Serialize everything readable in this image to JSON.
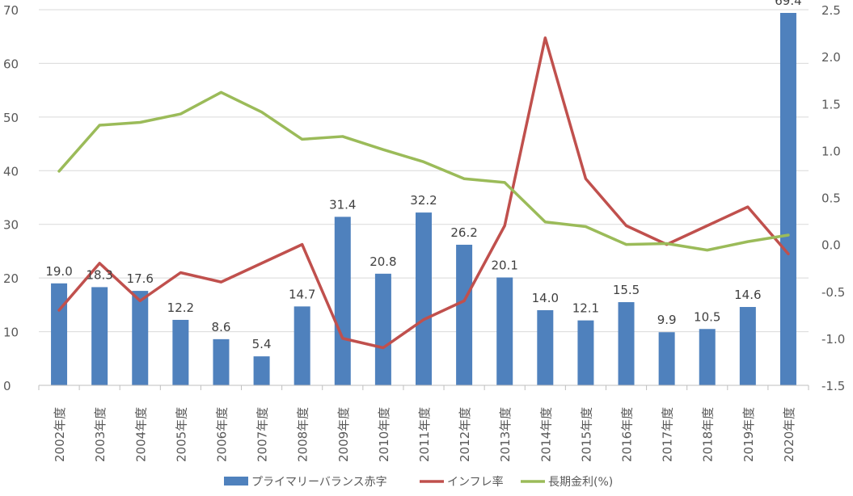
{
  "chart_data": {
    "type": "bar",
    "categories": [
      "2002年度",
      "2003年度",
      "2004年度",
      "2005年度",
      "2006年度",
      "2007年度",
      "2008年度",
      "2009年度",
      "2010年度",
      "2011年度",
      "2012年度",
      "2013年度",
      "2014年度",
      "2015年度",
      "2016年度",
      "2017年度",
      "2018年度",
      "2019年度",
      "2020年度"
    ],
    "series": [
      {
        "name": "プライマリーバランス赤字",
        "type": "bar",
        "axis": "left",
        "color": "#4F81BD",
        "values": [
          19.0,
          18.3,
          17.6,
          12.2,
          8.6,
          5.4,
          14.7,
          31.4,
          20.8,
          32.2,
          26.2,
          20.1,
          14.0,
          12.1,
          15.5,
          9.9,
          10.5,
          14.6,
          69.4
        ],
        "labels": [
          "19.0",
          "18.3",
          "17.6",
          "12.2",
          "8.6",
          "5.4",
          "14.7",
          "31.4",
          "20.8",
          "32.2",
          "26.2",
          "20.1",
          "14.0",
          "12.1",
          "15.5",
          "9.9",
          "10.5",
          "14.6",
          "69.4"
        ]
      },
      {
        "name": "インフレ率",
        "type": "line",
        "axis": "right",
        "color": "#C0504D",
        "values": [
          -0.7,
          -0.2,
          -0.6,
          -0.3,
          -0.4,
          -0.2,
          0.0,
          -1.0,
          -1.1,
          -0.8,
          -0.6,
          0.2,
          2.2,
          0.7,
          0.2,
          0.0,
          0.2,
          0.4,
          -0.1
        ]
      },
      {
        "name": "長期金利(%)",
        "type": "line",
        "axis": "right",
        "color": "#9BBB59",
        "values": [
          0.78,
          1.27,
          1.3,
          1.39,
          1.62,
          1.41,
          1.12,
          1.15,
          1.01,
          0.88,
          0.7,
          0.66,
          0.24,
          0.19,
          0.0,
          0.01,
          -0.06,
          0.03,
          0.1
        ]
      }
    ],
    "y_left": {
      "min": 0,
      "max": 70,
      "ticks": [
        "0",
        "10",
        "20",
        "30",
        "40",
        "50",
        "60",
        "70"
      ]
    },
    "y_right": {
      "min": -1.5,
      "max": 2.5,
      "ticks": [
        "-1.5",
        "-1.0",
        "-0.5",
        "0.0",
        "0.5",
        "1.0",
        "1.5",
        "2.0",
        "2.5"
      ]
    },
    "grid": true,
    "legend_position": "bottom"
  }
}
